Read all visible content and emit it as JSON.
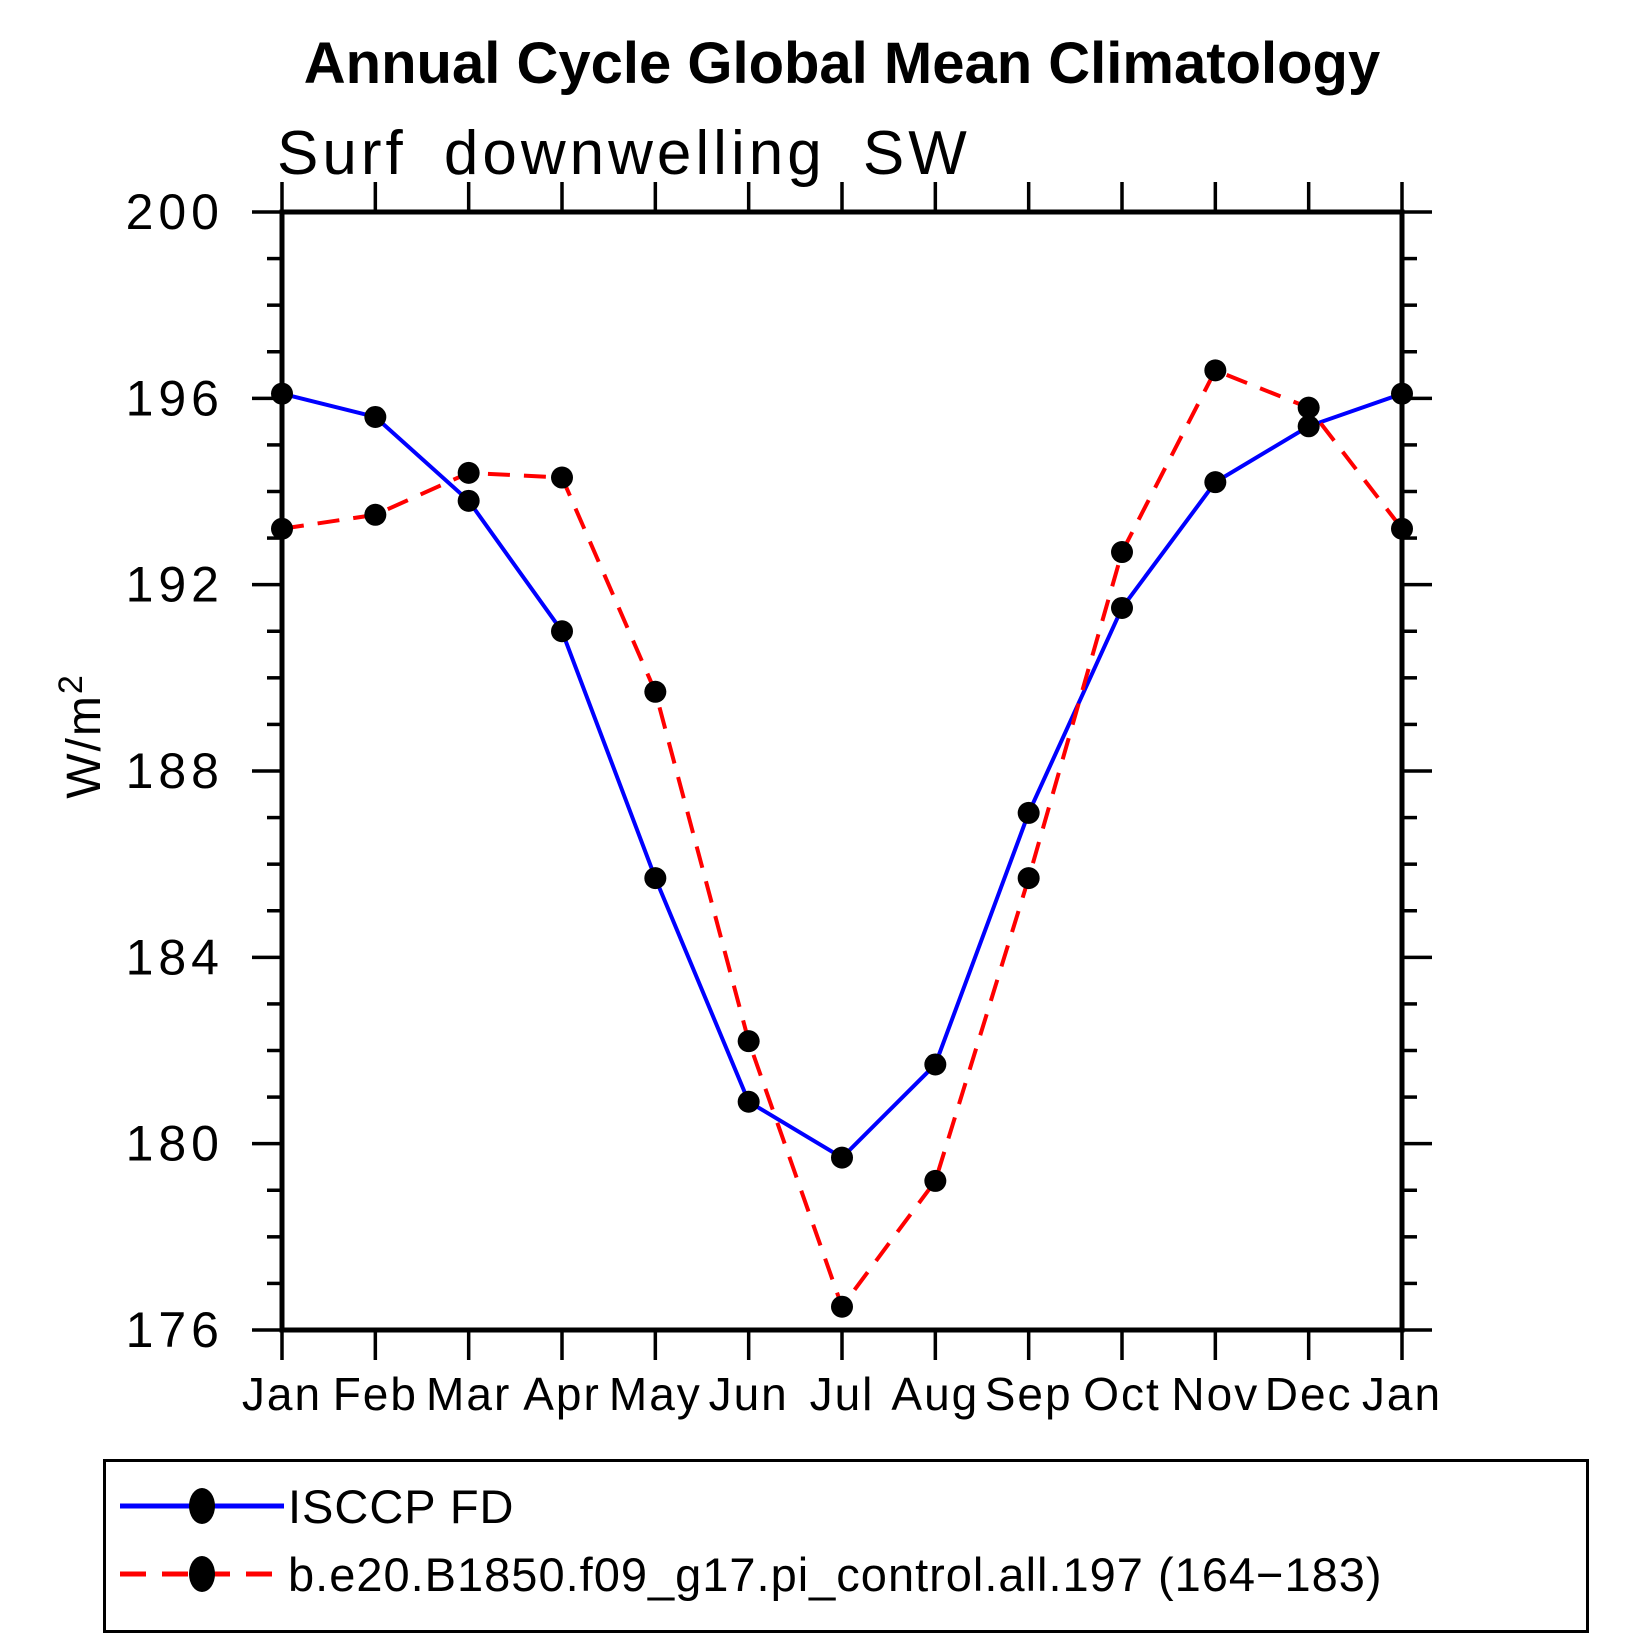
{
  "chart": {
    "title": "Annual Cycle Global Mean Climatology",
    "subtitle": "Surf downwelling SW"
  },
  "chart_data": {
    "type": "line",
    "title": "Annual Cycle Global Mean Climatology",
    "subtitle": "Surf downwelling SW",
    "xlabel": "",
    "ylabel_base": "W/m",
    "ylabel_sup": "2",
    "ylim": [
      176,
      200
    ],
    "ytick_major": 4,
    "ytick_minor": 1,
    "grid": false,
    "legend_position": "bottom-left",
    "categories": [
      "Jan",
      "Feb",
      "Mar",
      "Apr",
      "May",
      "Jun",
      "Jul",
      "Aug",
      "Sep",
      "Oct",
      "Nov",
      "Dec",
      "Jan"
    ],
    "series": [
      {
        "name": "ISCCP FD",
        "color": "#0000ff",
        "line_style": "solid",
        "values": [
          196.1,
          195.6,
          193.8,
          191.0,
          185.7,
          180.9,
          179.7,
          181.7,
          187.1,
          191.5,
          194.2,
          195.4,
          196.1
        ]
      },
      {
        "name": "b.e20.B1850.f09_g17.pi_control.all.197 (164−183)",
        "color": "#ff0000",
        "line_style": "dashed",
        "values": [
          193.2,
          193.5,
          194.4,
          194.3,
          189.7,
          182.2,
          176.5,
          179.2,
          185.7,
          192.7,
          196.6,
          195.8,
          193.2
        ]
      }
    ],
    "marker": {
      "shape": "circle",
      "color": "#000000",
      "radius": 11
    },
    "axis_color": "#000000"
  }
}
